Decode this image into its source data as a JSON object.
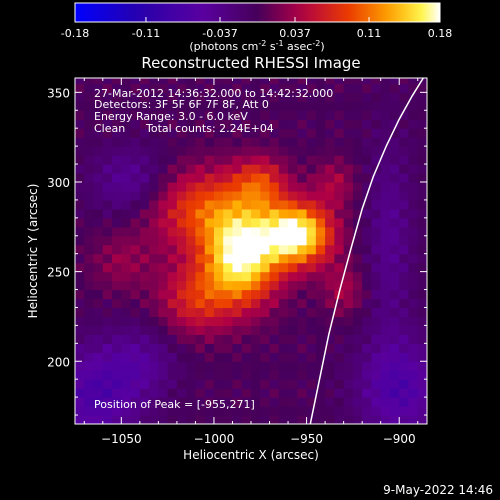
{
  "colorbar": {
    "ticks": [
      "-0.18",
      "-0.11",
      "-0.037",
      "0.037",
      "0.11",
      "0.18"
    ],
    "tick_values": [
      -0.18,
      -0.11,
      -0.037,
      0.037,
      0.11,
      0.18
    ],
    "range": [
      -0.18,
      0.18
    ],
    "units_main": "(photons cm",
    "units_exp1": "-2",
    "units_mid": " s",
    "units_exp2": "-1",
    "units_tail": " asec",
    "units_exp3": "-2",
    "units_close": ")"
  },
  "title": "Reconstructed RHESSI Image",
  "info": {
    "time": "27-Mar-2012 14:36:32.000 to 14:42:32.000",
    "detectors": "Detectors: 3F 5F 6F 7F 8F, Att 0",
    "energy": "Energy Range: 3.0 - 6.0 keV",
    "clean": "Clean",
    "counts": "Total counts: 2.24E+04"
  },
  "peak": "Position of Peak = [-955,271]",
  "footer": "9-May-2022 14:46",
  "chart_data": {
    "type": "heatmap",
    "title": "Reconstructed RHESSI Image",
    "xlabel": "Heliocentric X (arcsec)",
    "ylabel": "Heliocentric Y (arcsec)",
    "xlim": [
      -1075,
      -885
    ],
    "ylim": [
      165,
      358
    ],
    "x_ticks": [
      -1050,
      -1000,
      -950,
      -900
    ],
    "x_tick_labels": [
      "−1050",
      "−1000",
      "−950",
      "−900"
    ],
    "y_ticks": [
      200,
      250,
      300,
      350
    ],
    "y_tick_labels": [
      "200",
      "250",
      "300",
      "350"
    ],
    "colormap": "IDL color table 5 (blue-purple-red-yellow-white)",
    "colorbar_range": [
      -0.18,
      0.18
    ],
    "peak": [
      -955,
      271
    ],
    "limb_curve_x": [
      -948,
      -943,
      -938,
      -932,
      -926,
      -920,
      -914,
      -907,
      -900,
      -893,
      -887
    ],
    "limb_curve_y": [
      165,
      190,
      215,
      240,
      263,
      285,
      303,
      320,
      335,
      348,
      358
    ],
    "sources": [
      {
        "x": -985,
        "y": 258,
        "sigma_x": 14,
        "sigma_y": 18,
        "amp": 0.17
      },
      {
        "x": -955,
        "y": 271,
        "sigma_x": 13,
        "sigma_y": 12,
        "amp": 0.18
      },
      {
        "x": -1005,
        "y": 285,
        "sigma_x": 22,
        "sigma_y": 16,
        "amp": 0.09
      },
      {
        "x": -975,
        "y": 300,
        "sigma_x": 10,
        "sigma_y": 10,
        "amp": 0.07
      },
      {
        "x": -1010,
        "y": 235,
        "sigma_x": 14,
        "sigma_y": 14,
        "amp": 0.07
      },
      {
        "x": -935,
        "y": 300,
        "sigma_x": 8,
        "sigma_y": 9,
        "amp": 0.04
      },
      {
        "x": -1050,
        "y": 255,
        "sigma_x": 12,
        "sigma_y": 12,
        "amp": 0.03
      },
      {
        "x": -930,
        "y": 240,
        "sigma_x": 8,
        "sigma_y": 10,
        "amp": 0.04
      },
      {
        "x": -1045,
        "y": 300,
        "sigma_x": 15,
        "sigma_y": 14,
        "amp": -0.05
      },
      {
        "x": -1065,
        "y": 180,
        "sigma_x": 18,
        "sigma_y": 20,
        "amp": -0.07
      },
      {
        "x": -900,
        "y": 185,
        "sigma_x": 16,
        "sigma_y": 20,
        "amp": -0.07
      },
      {
        "x": -1040,
        "y": 200,
        "sigma_x": 14,
        "sigma_y": 14,
        "amp": -0.04
      },
      {
        "x": -905,
        "y": 270,
        "sigma_x": 9,
        "sigma_y": 40,
        "amp": -0.04
      }
    ]
  }
}
